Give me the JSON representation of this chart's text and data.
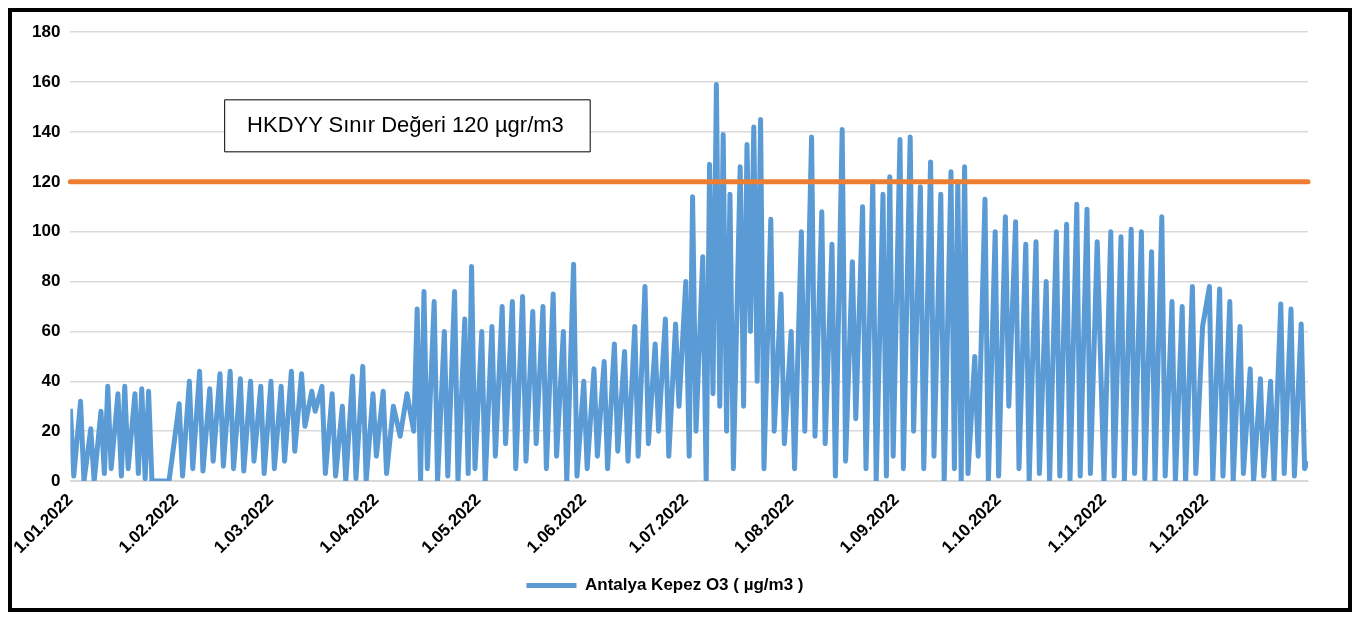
{
  "chart_data": {
    "type": "line",
    "x": [
      "2022-01-01",
      "2022-01-02",
      "2022-01-04",
      "2022-01-05",
      "2022-01-07",
      "2022-01-08",
      "2022-01-10",
      "2022-01-11",
      "2022-01-12",
      "2022-01-13",
      "2022-01-15",
      "2022-01-16",
      "2022-01-17",
      "2022-01-18",
      "2022-01-20",
      "2022-01-21",
      "2022-01-22",
      "2022-01-23",
      "2022-01-24",
      "2022-01-25",
      "2022-01-30",
      "2022-01-31",
      "2022-02-02",
      "2022-02-03",
      "2022-02-05",
      "2022-02-06",
      "2022-02-08",
      "2022-02-09",
      "2022-02-11",
      "2022-02-12",
      "2022-02-14",
      "2022-02-15",
      "2022-02-17",
      "2022-02-18",
      "2022-02-20",
      "2022-02-21",
      "2022-02-23",
      "2022-02-24",
      "2022-02-26",
      "2022-02-27",
      "2022-03-01",
      "2022-03-02",
      "2022-03-04",
      "2022-03-05",
      "2022-03-07",
      "2022-03-08",
      "2022-03-10",
      "2022-03-11",
      "2022-03-13",
      "2022-03-14",
      "2022-03-16",
      "2022-03-17",
      "2022-03-19",
      "2022-03-20",
      "2022-03-22",
      "2022-03-23",
      "2022-03-25",
      "2022-03-26",
      "2022-03-28",
      "2022-03-29",
      "2022-03-31",
      "2022-04-01",
      "2022-04-03",
      "2022-04-04",
      "2022-04-06",
      "2022-04-08",
      "2022-04-10",
      "2022-04-12",
      "2022-04-13",
      "2022-04-14",
      "2022-04-15",
      "2022-04-16",
      "2022-04-18",
      "2022-04-19",
      "2022-04-21",
      "2022-04-22",
      "2022-04-24",
      "2022-04-25",
      "2022-04-27",
      "2022-04-28",
      "2022-04-29",
      "2022-04-30",
      "2022-05-02",
      "2022-05-03",
      "2022-05-05",
      "2022-05-06",
      "2022-05-08",
      "2022-05-09",
      "2022-05-11",
      "2022-05-12",
      "2022-05-14",
      "2022-05-15",
      "2022-05-17",
      "2022-05-18",
      "2022-05-20",
      "2022-05-21",
      "2022-05-23",
      "2022-05-24",
      "2022-05-26",
      "2022-05-27",
      "2022-05-29",
      "2022-05-30",
      "2022-06-01",
      "2022-06-02",
      "2022-06-04",
      "2022-06-05",
      "2022-06-07",
      "2022-06-08",
      "2022-06-10",
      "2022-06-11",
      "2022-06-13",
      "2022-06-14",
      "2022-06-16",
      "2022-06-17",
      "2022-06-19",
      "2022-06-20",
      "2022-06-22",
      "2022-06-23",
      "2022-06-25",
      "2022-06-26",
      "2022-06-28",
      "2022-06-29",
      "2022-07-01",
      "2022-07-02",
      "2022-07-03",
      "2022-07-04",
      "2022-07-06",
      "2022-07-07",
      "2022-07-08",
      "2022-07-09",
      "2022-07-10",
      "2022-07-11",
      "2022-07-12",
      "2022-07-13",
      "2022-07-14",
      "2022-07-15",
      "2022-07-17",
      "2022-07-18",
      "2022-07-19",
      "2022-07-20",
      "2022-07-21",
      "2022-07-22",
      "2022-07-23",
      "2022-07-24",
      "2022-07-26",
      "2022-07-27",
      "2022-07-29",
      "2022-07-30",
      "2022-08-01",
      "2022-08-02",
      "2022-08-04",
      "2022-08-05",
      "2022-08-07",
      "2022-08-08",
      "2022-08-10",
      "2022-08-11",
      "2022-08-13",
      "2022-08-14",
      "2022-08-16",
      "2022-08-17",
      "2022-08-19",
      "2022-08-20",
      "2022-08-22",
      "2022-08-23",
      "2022-08-25",
      "2022-08-26",
      "2022-08-28",
      "2022-08-29",
      "2022-08-30",
      "2022-08-31",
      "2022-09-02",
      "2022-09-03",
      "2022-09-05",
      "2022-09-06",
      "2022-09-08",
      "2022-09-09",
      "2022-09-11",
      "2022-09-12",
      "2022-09-14",
      "2022-09-15",
      "2022-09-17",
      "2022-09-18",
      "2022-09-19",
      "2022-09-20",
      "2022-09-21",
      "2022-09-22",
      "2022-09-24",
      "2022-09-25",
      "2022-09-27",
      "2022-09-28",
      "2022-09-30",
      "2022-10-01",
      "2022-10-03",
      "2022-10-04",
      "2022-10-06",
      "2022-10-07",
      "2022-10-09",
      "2022-10-10",
      "2022-10-12",
      "2022-10-13",
      "2022-10-15",
      "2022-10-16",
      "2022-10-18",
      "2022-10-19",
      "2022-10-21",
      "2022-10-22",
      "2022-10-24",
      "2022-10-25",
      "2022-10-27",
      "2022-10-28",
      "2022-10-30",
      "2022-11-01",
      "2022-11-03",
      "2022-11-04",
      "2022-11-06",
      "2022-11-07",
      "2022-11-09",
      "2022-11-10",
      "2022-11-12",
      "2022-11-13",
      "2022-11-15",
      "2022-11-16",
      "2022-11-18",
      "2022-11-19",
      "2022-11-21",
      "2022-11-22",
      "2022-11-24",
      "2022-11-25",
      "2022-11-27",
      "2022-11-28",
      "2022-11-30",
      "2022-12-02",
      "2022-12-03",
      "2022-12-05",
      "2022-12-06",
      "2022-12-08",
      "2022-12-09",
      "2022-12-11",
      "2022-12-12",
      "2022-12-14",
      "2022-12-15",
      "2022-12-17",
      "2022-12-18",
      "2022-12-20",
      "2022-12-21",
      "2022-12-23",
      "2022-12-24",
      "2022-12-26",
      "2022-12-27",
      "2022-12-29",
      "2022-12-30",
      "2022-12-31"
    ],
    "series": [
      {
        "name": "Antalya Kepez O3 ( µg/m3 )",
        "color": "#5b9bd5",
        "values": [
          29,
          2,
          32,
          0,
          21,
          0,
          28,
          3,
          38,
          5,
          35,
          2,
          38,
          5,
          35,
          3,
          37,
          1,
          36,
          0,
          0,
          10,
          31,
          2,
          40,
          5,
          44,
          4,
          37,
          8,
          43,
          6,
          44,
          5,
          41,
          4,
          40,
          8,
          38,
          3,
          40,
          5,
          38,
          8,
          44,
          12,
          43,
          22,
          36,
          28,
          38,
          3,
          35,
          2,
          30,
          0,
          42,
          1,
          46,
          0,
          35,
          10,
          36,
          3,
          30,
          18,
          35,
          20,
          69,
          0,
          76,
          5,
          72,
          0,
          60,
          2,
          76,
          0,
          65,
          3,
          86,
          5,
          60,
          0,
          62,
          10,
          70,
          15,
          72,
          5,
          74,
          8,
          68,
          15,
          70,
          5,
          75,
          10,
          60,
          0,
          87,
          2,
          40,
          5,
          45,
          10,
          48,
          5,
          55,
          12,
          52,
          8,
          62,
          10,
          78,
          15,
          55,
          20,
          65,
          10,
          63,
          30,
          80,
          10,
          114,
          20,
          90,
          0,
          127,
          35,
          159,
          30,
          139,
          20,
          115,
          5,
          126,
          30,
          135,
          60,
          142,
          40,
          145,
          5,
          105,
          20,
          75,
          15,
          60,
          5,
          100,
          20,
          138,
          18,
          108,
          15,
          95,
          2,
          141,
          8,
          88,
          25,
          110,
          5,
          120,
          0,
          115,
          2,
          122,
          10,
          137,
          5,
          138,
          20,
          118,
          5,
          128,
          10,
          115,
          0,
          124,
          5,
          120,
          0,
          126,
          3,
          50,
          10,
          113,
          0,
          100,
          2,
          106,
          30,
          104,
          5,
          95,
          0,
          96,
          3,
          80,
          0,
          100,
          2,
          103,
          0,
          111,
          2,
          109,
          3,
          96,
          0,
          100,
          2,
          98,
          0,
          101,
          3,
          100,
          1,
          92,
          0,
          106,
          2,
          72,
          0,
          70,
          0,
          78,
          3,
          62,
          78,
          0,
          77,
          2,
          72,
          0,
          62,
          3,
          45,
          0,
          41,
          2,
          40,
          0,
          71,
          3,
          69,
          2,
          63,
          5,
          8
        ]
      }
    ],
    "xlim": [
      "2022-01-01",
      "2022-12-31"
    ],
    "xticks": [
      {
        "value": "2022-01-01",
        "label": "1.01.2022"
      },
      {
        "value": "2022-02-01",
        "label": "1.02.2022"
      },
      {
        "value": "2022-03-01",
        "label": "1.03.2022"
      },
      {
        "value": "2022-04-01",
        "label": "1.04.2022"
      },
      {
        "value": "2022-05-01",
        "label": "1.05.2022"
      },
      {
        "value": "2022-06-01",
        "label": "1.06.2022"
      },
      {
        "value": "2022-07-01",
        "label": "1.07.2022"
      },
      {
        "value": "2022-08-01",
        "label": "1.08.2022"
      },
      {
        "value": "2022-09-01",
        "label": "1.09.2022"
      },
      {
        "value": "2022-10-01",
        "label": "1.10.2022"
      },
      {
        "value": "2022-11-01",
        "label": "1.11.2022"
      },
      {
        "value": "2022-12-01",
        "label": "1.12.2022"
      }
    ],
    "ylim": [
      0,
      180
    ],
    "yticks": [
      0,
      20,
      40,
      60,
      80,
      100,
      120,
      140,
      160,
      180
    ],
    "ref_lines": [
      {
        "axis": "y",
        "value": 120,
        "label": "HKDYY Sınır Değeri 120 µgr/m3",
        "color": "#ed7d31"
      }
    ],
    "grid": "y",
    "legend": "bottom",
    "marker": "none",
    "line_style": "solid"
  }
}
